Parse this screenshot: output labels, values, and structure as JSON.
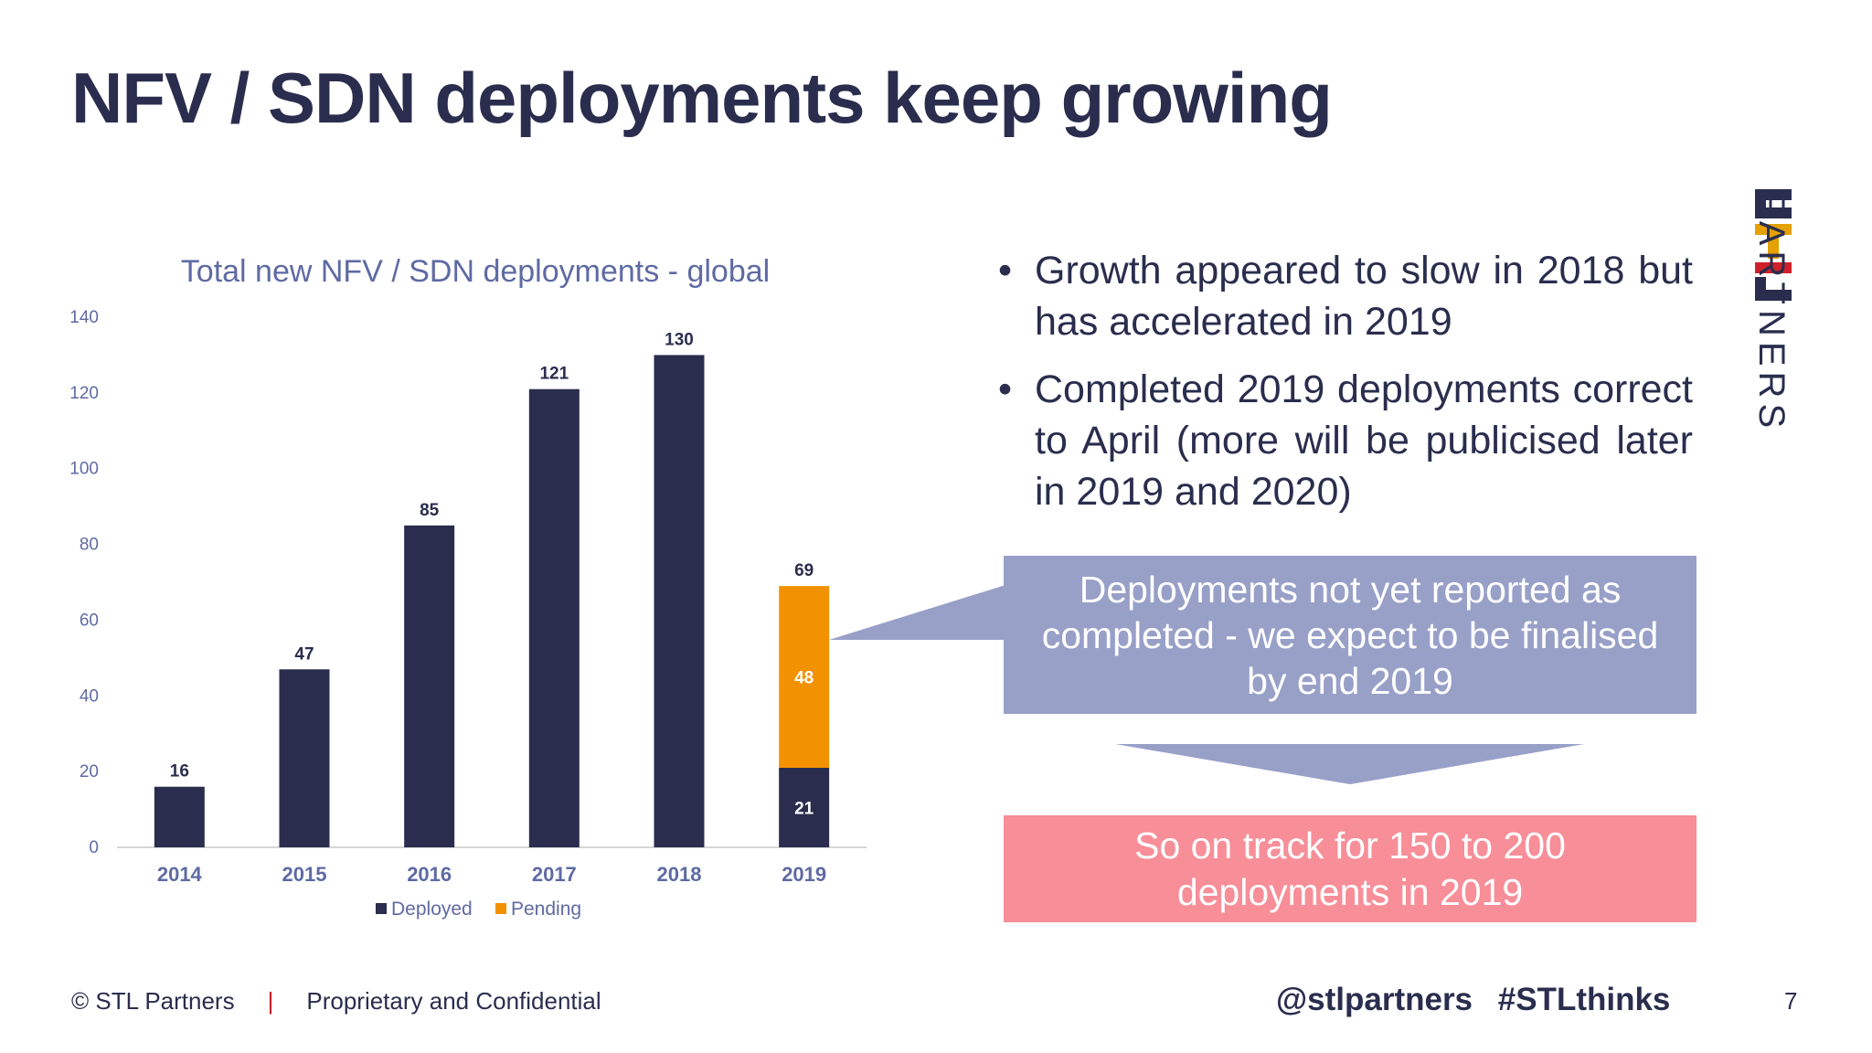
{
  "slide": {
    "title": "NFV / SDN deployments keep growing",
    "bullets": [
      "Growth appeared to slow in 2018 but has accelerated in 2019",
      "Completed 2019 deployments correct to April (more will be publicised later in 2019 and 2020)"
    ],
    "callout_text": "Deployments not yet reported as completed - we expect to be finalised by end 2019",
    "track_text": "So on track for 150 to 200 deployments in 2019",
    "logo": {
      "brand": "STL",
      "text": "PARTNERS"
    },
    "footer": {
      "copyright": "© STL Partners",
      "separator": "|",
      "confidential": "Proprietary and Confidential",
      "handles": "@stlpartners #STLthinks",
      "page_number": "7"
    }
  },
  "chart_data": {
    "type": "bar",
    "stacked": true,
    "title": "Total new NFV / SDN deployments - global",
    "xlabel": "",
    "ylabel": "",
    "categories": [
      "2014",
      "2015",
      "2016",
      "2017",
      "2018",
      "2019"
    ],
    "series": [
      {
        "name": "Deployed",
        "values": [
          16,
          47,
          85,
          121,
          130,
          21
        ],
        "color": "#2a2d4d"
      },
      {
        "name": "Pending",
        "values": [
          0,
          0,
          0,
          0,
          0,
          48
        ],
        "color": "#f39200"
      }
    ],
    "totals": [
      16,
      47,
      85,
      121,
      130,
      69
    ],
    "yticks": [
      "0",
      "20",
      "40",
      "60",
      "80",
      "100",
      "120",
      "140"
    ],
    "ylim": [
      0,
      140
    ],
    "grid": false,
    "legend_position": "bottom"
  }
}
